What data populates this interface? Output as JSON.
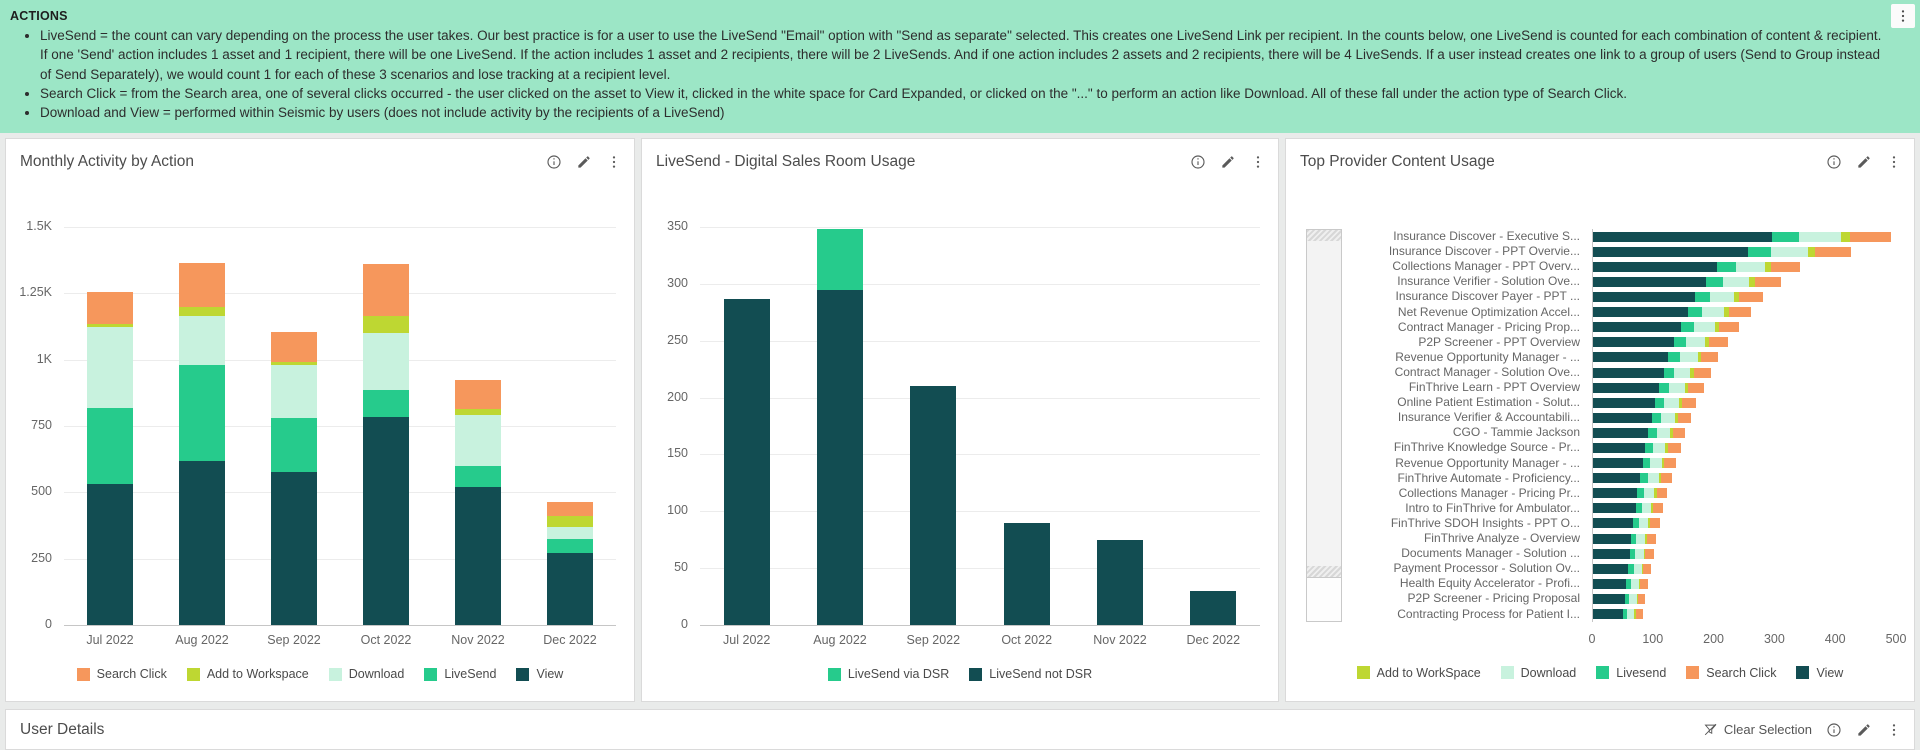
{
  "banner": {
    "title": "ACTIONS",
    "bullets": [
      "LiveSend = the count can vary depending on the process the user takes.  Our best practice is for a user to use the LiveSend \"Email\" option with \"Send as separate\" selected.  This creates one LiveSend Link per recipient.  In the counts below, one LiveSend is counted for each combination of content & recipient.  If one 'Send' action includes 1 asset and 1 recipient, there will be one LiveSend.  If the action includes 1 asset and 2 recipients, there will be 2 LiveSends.  And if one action includes 2 assets and 2 recipients, there will be 4 LiveSends.  If a user instead creates one link to a group of users (Send to Group instead of Send Separately), we would count 1 for each of these 3 scenarios and lose tracking at a recipient level.",
      "Search Click = from the Search area, one of several clicks occurred - the user clicked on the asset to View it, clicked in the white space for Card Expanded, or clicked on the \"...\" to perform an action like Download.  All of these fall under the action type of Search Click.",
      "Download and View = performed within Seismic by users (does not include activity by the recipients of a LiveSend)"
    ]
  },
  "colors": {
    "banner_bg": "#9ce6c6",
    "view": "#124d52",
    "livesend": "#26cb8c",
    "download": "#c8f2de",
    "add_to_workspace": "#bed732",
    "search_click": "#f6975c"
  },
  "panels": {
    "monthly": {
      "title": "Monthly Activity by Action"
    },
    "livesend": {
      "title": "LiveSend - Digital Sales Room Usage"
    },
    "provider": {
      "title": "Top Provider Content Usage"
    }
  },
  "bottom_bar": {
    "title": "User Details",
    "clear_selection_label": "Clear Selection"
  },
  "chart_data": [
    {
      "type": "bar",
      "orientation": "vertical",
      "stacked": true,
      "title": "Monthly Activity by Action",
      "categories": [
        "Jul 2022",
        "Aug 2022",
        "Sep 2022",
        "Oct 2022",
        "Nov 2022",
        "Dec 2022"
      ],
      "ymax": 1500,
      "yticks": [
        {
          "v": 0,
          "label": "0"
        },
        {
          "v": 250,
          "label": "250"
        },
        {
          "v": 500,
          "label": "500"
        },
        {
          "v": 750,
          "label": "750"
        },
        {
          "v": 1000,
          "label": "1K"
        },
        {
          "v": 1250,
          "label": "1.25K"
        },
        {
          "v": 1500,
          "label": "1.5K"
        }
      ],
      "series": [
        {
          "name": "View",
          "color": "view",
          "values": [
            530,
            620,
            575,
            785,
            520,
            270
          ]
        },
        {
          "name": "LiveSend",
          "color": "livesend",
          "values": [
            290,
            360,
            205,
            100,
            80,
            55
          ]
        },
        {
          "name": "Download",
          "color": "download",
          "values": [
            305,
            185,
            200,
            215,
            190,
            45
          ]
        },
        {
          "name": "Add to Workspace",
          "color": "add_to_workspace",
          "values": [
            10,
            35,
            10,
            65,
            25,
            40
          ]
        },
        {
          "name": "Search Click",
          "color": "search_click",
          "values": [
            120,
            165,
            115,
            195,
            110,
            55
          ]
        }
      ],
      "legend": [
        {
          "label": "Search Click",
          "color": "search_click"
        },
        {
          "label": "Add to Workspace",
          "color": "add_to_workspace"
        },
        {
          "label": "Download",
          "color": "download"
        },
        {
          "label": "LiveSend",
          "color": "livesend"
        },
        {
          "label": "View",
          "color": "view"
        }
      ]
    },
    {
      "type": "bar",
      "orientation": "vertical",
      "stacked": true,
      "title": "LiveSend - Digital Sales Room Usage",
      "categories": [
        "Jul 2022",
        "Aug 2022",
        "Sep 2022",
        "Oct 2022",
        "Nov 2022",
        "Dec 2022"
      ],
      "ymax": 350,
      "yticks": [
        {
          "v": 0,
          "label": "0"
        },
        {
          "v": 50,
          "label": "50"
        },
        {
          "v": 100,
          "label": "100"
        },
        {
          "v": 150,
          "label": "150"
        },
        {
          "v": 200,
          "label": "200"
        },
        {
          "v": 250,
          "label": "250"
        },
        {
          "v": 300,
          "label": "300"
        },
        {
          "v": 350,
          "label": "350"
        }
      ],
      "series": [
        {
          "name": "LiveSend not DSR",
          "color": "view",
          "values": [
            287,
            295,
            210,
            90,
            75,
            30
          ]
        },
        {
          "name": "LiveSend via DSR",
          "color": "livesend",
          "values": [
            0,
            53,
            0,
            0,
            0,
            0
          ]
        }
      ],
      "legend": [
        {
          "label": "LiveSend via DSR",
          "color": "livesend"
        },
        {
          "label": "LiveSend not DSR",
          "color": "view"
        }
      ]
    },
    {
      "type": "bar",
      "orientation": "horizontal",
      "stacked": true,
      "title": "Top Provider Content Usage",
      "xmax": 500,
      "xticks": [
        0,
        100,
        200,
        300,
        400,
        500
      ],
      "categories": [
        "Insurance Discover - Executive S...",
        "Insurance Discover - PPT Overvie...",
        "Collections Manager - PPT Overv...",
        "Insurance Verifier - Solution Ove...",
        "Insurance Discover Payer - PPT ...",
        "Net Revenue Optimization Accel...",
        "Contract Manager - Pricing Prop...",
        "P2P Screener - PPT Overview",
        "Revenue Opportunity Manager - ...",
        "Contract Manager - Solution Ove...",
        "FinThrive Learn - PPT Overview",
        "Online Patient Estimation - Solut...",
        "Insurance Verifier & Accountabili...",
        "CGO - Tammie Jackson",
        "FinThrive Knowledge Source - Pr...",
        "Revenue Opportunity Manager - ...",
        "FinThrive Automate - Proficiency...",
        "Collections Manager - Pricing Pr...",
        "Intro to FinThrive for Ambulator...",
        "FinThrive SDOH Insights - PPT O...",
        "FinThrive Analyze - Overview",
        "Documents Manager - Solution ...",
        "Payment Processor - Solution Ov...",
        "Health Equity Accelerator - Profi...",
        "P2P Screener - Pricing Proposal",
        "Contracting Process for Patient I..."
      ],
      "series": [
        {
          "name": "View",
          "color": "view",
          "values": [
            294,
            255,
            204,
            186,
            168,
            156,
            144,
            133,
            124,
            116,
            109,
            102,
            97,
            91,
            86,
            82,
            78,
            73,
            70,
            66,
            62,
            60,
            58,
            54,
            52,
            49
          ]
        },
        {
          "name": "Livesend",
          "color": "livesend",
          "values": [
            44,
            38,
            31,
            28,
            25,
            23,
            22,
            20,
            19,
            17,
            16,
            15,
            15,
            14,
            13,
            12,
            12,
            11,
            10,
            10,
            9,
            9,
            9,
            8,
            8,
            7
          ]
        },
        {
          "name": "Download",
          "color": "download",
          "values": [
            69,
            60,
            48,
            43,
            39,
            36,
            34,
            31,
            29,
            27,
            26,
            24,
            23,
            21,
            20,
            19,
            18,
            17,
            16,
            15,
            15,
            14,
            13,
            13,
            12,
            12
          ]
        },
        {
          "name": "Add to WorkSpace",
          "color": "add_to_workspace",
          "values": [
            15,
            13,
            10,
            9,
            8,
            8,
            7,
            7,
            6,
            6,
            5,
            5,
            5,
            5,
            4,
            4,
            4,
            4,
            3,
            3,
            3,
            3,
            3,
            3,
            2,
            2
          ]
        },
        {
          "name": "Search Click",
          "color": "search_click",
          "values": [
            68,
            59,
            47,
            44,
            40,
            37,
            33,
            31,
            28,
            28,
            26,
            24,
            22,
            21,
            21,
            19,
            18,
            17,
            17,
            16,
            15,
            14,
            13,
            12,
            12,
            12
          ]
        }
      ],
      "legend": [
        {
          "label": "Add to WorkSpace",
          "color": "add_to_workspace"
        },
        {
          "label": "Download",
          "color": "download"
        },
        {
          "label": "Livesend",
          "color": "livesend"
        },
        {
          "label": "Search Click",
          "color": "search_click"
        },
        {
          "label": "View",
          "color": "view"
        }
      ]
    }
  ]
}
